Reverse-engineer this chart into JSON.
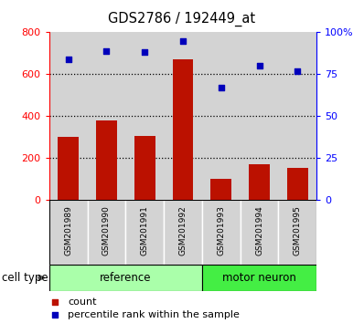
{
  "title": "GDS2786 / 192449_at",
  "samples": [
    "GSM201989",
    "GSM201990",
    "GSM201991",
    "GSM201992",
    "GSM201993",
    "GSM201994",
    "GSM201995"
  ],
  "counts": [
    300,
    382,
    305,
    670,
    100,
    170,
    155
  ],
  "percentiles": [
    84,
    89,
    88,
    95,
    67,
    80,
    77
  ],
  "bar_color": "#BB1100",
  "dot_color": "#0000BB",
  "left_ylim": [
    0,
    800
  ],
  "right_ylim": [
    0,
    100
  ],
  "left_yticks": [
    0,
    200,
    400,
    600,
    800
  ],
  "right_yticks": [
    0,
    25,
    50,
    75,
    100
  ],
  "right_yticklabels": [
    "0",
    "25",
    "50",
    "75",
    "100%"
  ],
  "left_yticklabels": [
    "0",
    "200",
    "400",
    "600",
    "800"
  ],
  "grid_values": [
    200,
    400,
    600
  ],
  "background_color": "#D3D3D3",
  "ref_color": "#AAFFAA",
  "mn_color": "#44EE44",
  "bar_width": 0.55,
  "n_ref": 4,
  "n_mn": 3
}
